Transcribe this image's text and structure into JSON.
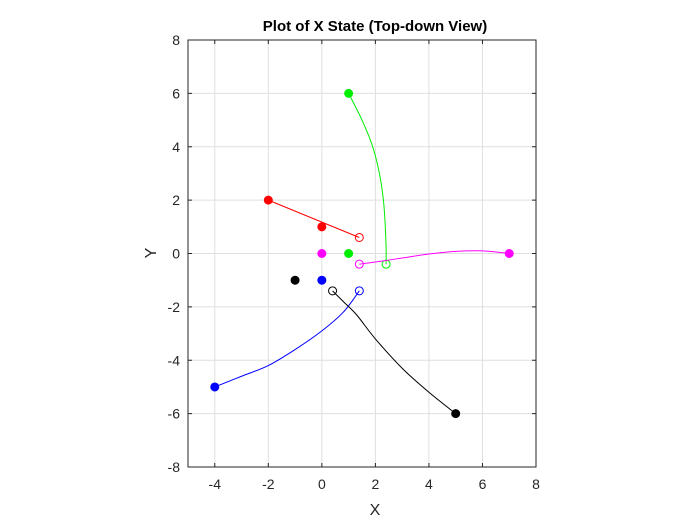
{
  "chart_data": {
    "type": "scatter",
    "title": "Plot of X State (Top-down View)",
    "xlabel": "X",
    "ylabel": "Y",
    "xlim": [
      -5,
      8
    ],
    "ylim": [
      -8,
      8
    ],
    "xticks": [
      -4,
      -2,
      0,
      2,
      4,
      6,
      8
    ],
    "yticks": [
      -8,
      -6,
      -4,
      -2,
      0,
      2,
      4,
      6,
      8
    ],
    "grid": true,
    "legend": "none",
    "series": [
      {
        "color": "#ff0000",
        "start": [
          -2,
          2
        ],
        "end": [
          1.4,
          0.6
        ],
        "path": [
          [
            -2,
            2
          ],
          [
            1.4,
            0.6
          ]
        ],
        "extra_points": [
          [
            0,
            1
          ]
        ]
      },
      {
        "color": "#00ee00",
        "start": [
          1,
          6
        ],
        "end": [
          2.4,
          -0.4
        ],
        "path": [
          [
            1,
            6
          ],
          [
            1.5,
            5.0
          ],
          [
            1.9,
            4.0
          ],
          [
            2.15,
            3.0
          ],
          [
            2.3,
            2.0
          ],
          [
            2.37,
            1.0
          ],
          [
            2.4,
            0.2
          ],
          [
            2.4,
            -0.4
          ]
        ],
        "extra_points": [
          [
            1,
            0
          ]
        ]
      },
      {
        "color": "#ff00ff",
        "start": [
          7,
          0
        ],
        "end": [
          1.4,
          -0.4
        ],
        "path": [
          [
            7,
            0
          ],
          [
            6,
            0.1
          ],
          [
            5,
            0.08
          ],
          [
            4,
            -0.02
          ],
          [
            3,
            -0.17
          ],
          [
            2,
            -0.32
          ],
          [
            1.4,
            -0.4
          ]
        ],
        "extra_points": [
          [
            0,
            0
          ]
        ]
      },
      {
        "color": "#0000ff",
        "start": [
          -4,
          -5
        ],
        "end": [
          1.4,
          -1.4
        ],
        "path": [
          [
            -4,
            -5
          ],
          [
            -3,
            -4.6
          ],
          [
            -2,
            -4.2
          ],
          [
            -1,
            -3.6
          ],
          [
            0,
            -2.9
          ],
          [
            0.8,
            -2.2
          ],
          [
            1.4,
            -1.4
          ]
        ],
        "extra_points": [
          [
            0,
            -1
          ]
        ]
      },
      {
        "color": "#000000",
        "start": [
          5,
          -6
        ],
        "end": [
          0.4,
          -1.4
        ],
        "path": [
          [
            5,
            -6
          ],
          [
            4,
            -5.2
          ],
          [
            3,
            -4.3
          ],
          [
            2,
            -3.2
          ],
          [
            1.3,
            -2.3
          ],
          [
            0.8,
            -1.8
          ],
          [
            0.4,
            -1.4
          ]
        ],
        "extra_points": [
          [
            -1,
            -1
          ]
        ]
      }
    ]
  }
}
